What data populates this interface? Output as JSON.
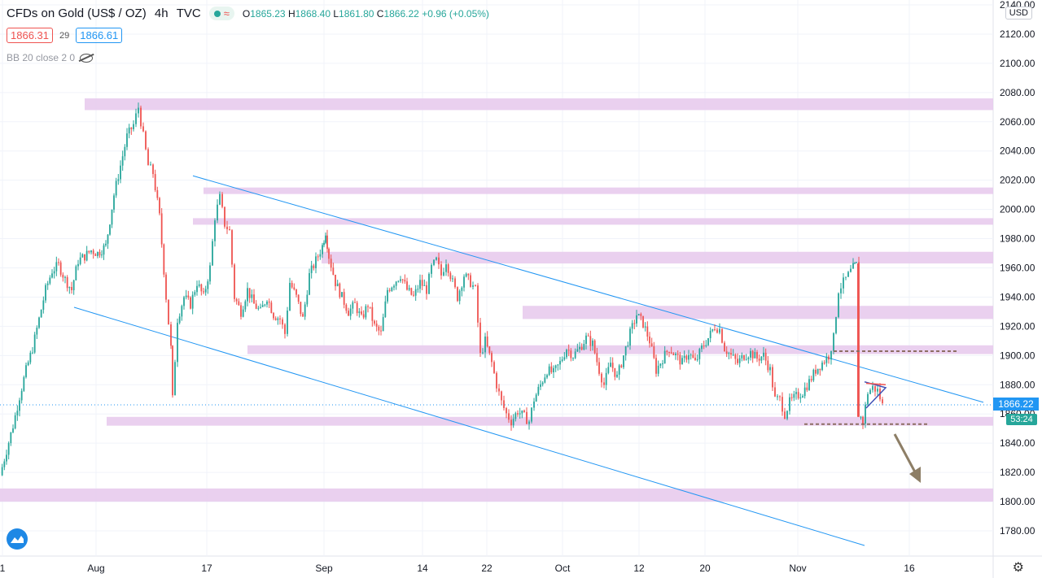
{
  "header": {
    "symbol": "CFDs on Gold (US$ / OZ)",
    "interval": "4h",
    "source": "TVC",
    "open_label": "O",
    "open": "1865.23",
    "high_label": "H",
    "high": "1868.40",
    "low_label": "L",
    "low": "1861.80",
    "close_label": "C",
    "close": "1866.22",
    "change": "+0.96 (+0.05%)"
  },
  "order": {
    "sell": "1866.31",
    "spread": "29",
    "buy": "1866.61"
  },
  "indicator": {
    "label": "BB 20 close 2 0"
  },
  "currency": "USD",
  "last_price_tag": "1866.22",
  "countdown_tag": "53:24",
  "colors": {
    "up": "#26a69a",
    "down": "#ef5350",
    "zone": "#e6c8ec",
    "channel": "#2196f3",
    "dashed": "#8d6e63",
    "arrow": "#8d7e66",
    "triangle": "#3f51b5"
  },
  "chart_data": {
    "type": "candlestick",
    "ylim": [
      1770,
      2140
    ],
    "y_ticks": [
      2140,
      2120,
      2100,
      2080,
      2060,
      2040,
      2020,
      2000,
      1980,
      1960,
      1940,
      1920,
      1900,
      1880,
      1860,
      1840,
      1820,
      1800,
      1780
    ],
    "x_ticks": [
      "1",
      "Aug",
      "17",
      "Sep",
      "14",
      "22",
      "Oct",
      "12",
      "20",
      "Nov",
      "16"
    ],
    "close_path": [
      [
        0,
        1818
      ],
      [
        8,
        1835
      ],
      [
        16,
        1852
      ],
      [
        24,
        1872
      ],
      [
        32,
        1890
      ],
      [
        40,
        1905
      ],
      [
        48,
        1925
      ],
      [
        56,
        1945
      ],
      [
        64,
        1958
      ],
      [
        72,
        1962
      ],
      [
        80,
        1952
      ],
      [
        88,
        1945
      ],
      [
        96,
        1965
      ],
      [
        104,
        1968
      ],
      [
        112,
        1972
      ],
      [
        120,
        1970
      ],
      [
        130,
        1975
      ],
      [
        140,
        2010
      ],
      [
        148,
        2030
      ],
      [
        156,
        2050
      ],
      [
        164,
        2058
      ],
      [
        170,
        2070
      ],
      [
        176,
        2050
      ],
      [
        182,
        2030
      ],
      [
        188,
        2025
      ],
      [
        196,
        1995
      ],
      [
        204,
        1940
      ],
      [
        210,
        1905
      ],
      [
        212,
        1870
      ],
      [
        218,
        1925
      ],
      [
        226,
        1940
      ],
      [
        234,
        1935
      ],
      [
        242,
        1950
      ],
      [
        250,
        1940
      ],
      [
        258,
        1960
      ],
      [
        264,
        1995
      ],
      [
        270,
        2008
      ],
      [
        276,
        1990
      ],
      [
        282,
        1985
      ],
      [
        288,
        1940
      ],
      [
        296,
        1930
      ],
      [
        304,
        1945
      ],
      [
        312,
        1935
      ],
      [
        320,
        1930
      ],
      [
        328,
        1940
      ],
      [
        336,
        1928
      ],
      [
        344,
        1925
      ],
      [
        350,
        1915
      ],
      [
        356,
        1950
      ],
      [
        364,
        1940
      ],
      [
        372,
        1925
      ],
      [
        380,
        1955
      ],
      [
        388,
        1965
      ],
      [
        396,
        1975
      ],
      [
        400,
        1985
      ],
      [
        404,
        1968
      ],
      [
        412,
        1950
      ],
      [
        420,
        1940
      ],
      [
        428,
        1930
      ],
      [
        436,
        1935
      ],
      [
        444,
        1925
      ],
      [
        452,
        1935
      ],
      [
        460,
        1920
      ],
      [
        468,
        1915
      ],
      [
        476,
        1945
      ],
      [
        484,
        1950
      ],
      [
        492,
        1955
      ],
      [
        500,
        1945
      ],
      [
        508,
        1940
      ],
      [
        516,
        1950
      ],
      [
        524,
        1945
      ],
      [
        530,
        1960
      ],
      [
        536,
        1965
      ],
      [
        542,
        1955
      ],
      [
        548,
        1965
      ],
      [
        556,
        1950
      ],
      [
        562,
        1940
      ],
      [
        570,
        1955
      ],
      [
        578,
        1950
      ],
      [
        584,
        1945
      ],
      [
        590,
        1900
      ],
      [
        596,
        1910
      ],
      [
        604,
        1895
      ],
      [
        610,
        1880
      ],
      [
        616,
        1868
      ],
      [
        622,
        1860
      ],
      [
        628,
        1855
      ],
      [
        636,
        1862
      ],
      [
        644,
        1858
      ],
      [
        650,
        1855
      ],
      [
        656,
        1870
      ],
      [
        664,
        1880
      ],
      [
        672,
        1890
      ],
      [
        680,
        1888
      ],
      [
        688,
        1895
      ],
      [
        696,
        1905
      ],
      [
        704,
        1900
      ],
      [
        712,
        1905
      ],
      [
        720,
        1912
      ],
      [
        728,
        1908
      ],
      [
        736,
        1890
      ],
      [
        742,
        1880
      ],
      [
        750,
        1895
      ],
      [
        758,
        1885
      ],
      [
        766,
        1900
      ],
      [
        774,
        1915
      ],
      [
        782,
        1928
      ],
      [
        790,
        1922
      ],
      [
        798,
        1910
      ],
      [
        806,
        1890
      ],
      [
        814,
        1898
      ],
      [
        822,
        1905
      ],
      [
        830,
        1900
      ],
      [
        838,
        1895
      ],
      [
        846,
        1902
      ],
      [
        854,
        1895
      ],
      [
        862,
        1905
      ],
      [
        870,
        1912
      ],
      [
        878,
        1920
      ],
      [
        884,
        1918
      ],
      [
        890,
        1905
      ],
      [
        898,
        1900
      ],
      [
        906,
        1895
      ],
      [
        914,
        1900
      ],
      [
        922,
        1902
      ],
      [
        930,
        1898
      ],
      [
        938,
        1900
      ],
      [
        946,
        1890
      ],
      [
        952,
        1870
      ],
      [
        958,
        1870
      ],
      [
        964,
        1860
      ],
      [
        970,
        1868
      ],
      [
        978,
        1872
      ],
      [
        986,
        1875
      ],
      [
        994,
        1882
      ],
      [
        1002,
        1890
      ],
      [
        1010,
        1895
      ],
      [
        1018,
        1900
      ],
      [
        1024,
        1912
      ],
      [
        1030,
        1945
      ],
      [
        1036,
        1950
      ],
      [
        1042,
        1955
      ],
      [
        1048,
        1960
      ],
      [
        1052,
        1962
      ],
      [
        1055,
        1860
      ],
      [
        1060,
        1855
      ],
      [
        1066,
        1875
      ],
      [
        1072,
        1878
      ],
      [
        1078,
        1876
      ],
      [
        1084,
        1866
      ]
    ],
    "annotations": {
      "zones": [
        {
          "from": 2068,
          "to": 2076,
          "x0": 104
        },
        {
          "from": 2011,
          "to": 2015,
          "x0": 250
        },
        {
          "from": 1990,
          "to": 1994,
          "x0": 237
        },
        {
          "from": 1963,
          "to": 1971,
          "x0": 395
        },
        {
          "from": 1925,
          "to": 1934,
          "x0": 642
        },
        {
          "from": 1901,
          "to": 1907,
          "x0": 304
        },
        {
          "from": 1852,
          "to": 1858,
          "x0": 131
        },
        {
          "from": 1800,
          "to": 1809,
          "x0": 0
        }
      ],
      "channel_upper": [
        [
          237,
          2023
        ],
        [
          1208,
          1868
        ]
      ],
      "channel_lower": [
        [
          91,
          1933
        ],
        [
          1062,
          1770
        ]
      ],
      "resistance_dashed": 1903,
      "support_dashed": 1853
    }
  }
}
